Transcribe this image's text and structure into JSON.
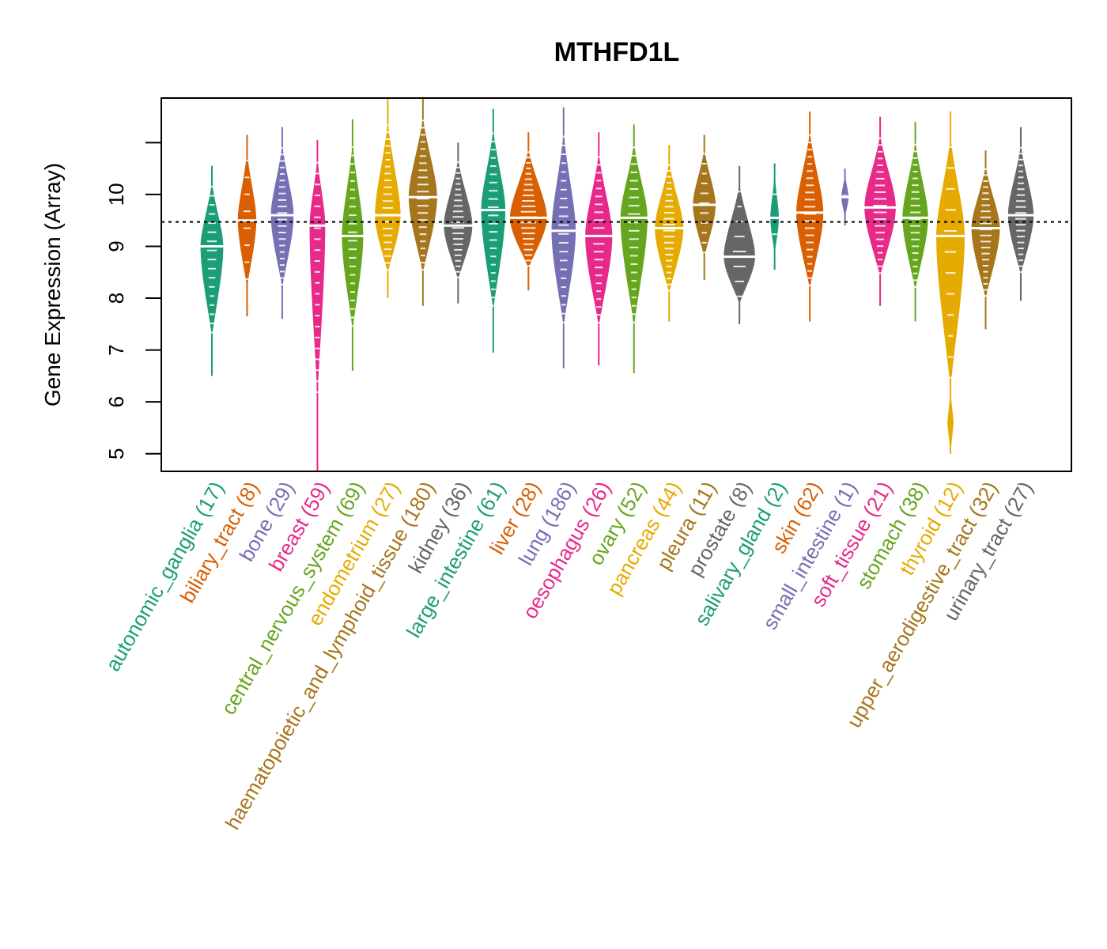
{
  "chart_data": {
    "type": "violin",
    "title": "MTHFD1L",
    "xlabel": "",
    "ylabel": "Gene Expression (Array)",
    "ylim": [
      4.66,
      11.86
    ],
    "yticks": [
      5,
      6,
      7,
      8,
      9,
      10,
      11
    ],
    "ytick_labels": [
      "5",
      "6",
      "7",
      "8",
      "9",
      "10",
      ""
    ],
    "reference_line": {
      "value": 9.47,
      "style": "dotted"
    },
    "grid": false,
    "legend": "none",
    "categories": [
      {
        "name": "autonomic_ganglia",
        "n": 17,
        "label": "autonomic_ganglia (17)",
        "color": "#1b9e77",
        "median": 9.0,
        "min": 6.5,
        "max": 10.55,
        "width": 0.8
      },
      {
        "name": "biliary_tract",
        "n": 8,
        "label": "biliary_tract (8)",
        "color": "#d95f02",
        "median": 9.5,
        "min": 7.65,
        "max": 11.15,
        "width": 0.65
      },
      {
        "name": "bone",
        "n": 29,
        "label": "bone (29)",
        "color": "#7570b3",
        "median": 9.6,
        "min": 7.6,
        "max": 11.3,
        "width": 0.8
      },
      {
        "name": "breast",
        "n": 59,
        "label": "breast (59)",
        "color": "#e7298a",
        "median": 9.4,
        "min": 4.66,
        "max": 11.05,
        "width": 0.55
      },
      {
        "name": "central_nervous_system",
        "n": 69,
        "label": "central_nervous_system (69)",
        "color": "#66a61e",
        "median": 9.2,
        "min": 6.6,
        "max": 11.45,
        "width": 0.75
      },
      {
        "name": "endometrium",
        "n": 27,
        "label": "endometrium (27)",
        "color": "#e6ab02",
        "median": 9.6,
        "min": 8.0,
        "max": 11.85,
        "width": 0.9
      },
      {
        "name": "haematopoietic_and_lymphoid_tissue",
        "n": 180,
        "label": "haematopoietic_and_lymphoid_tissue (180)",
        "color": "#a6761d",
        "median": 9.95,
        "min": 7.85,
        "max": 11.88,
        "width": 1.0
      },
      {
        "name": "kidney",
        "n": 36,
        "label": "kidney (36)",
        "color": "#666666",
        "median": 9.4,
        "min": 7.9,
        "max": 11.0,
        "width": 1.0
      },
      {
        "name": "large_intestine",
        "n": 61,
        "label": "large_intestine (61)",
        "color": "#1b9e77",
        "median": 9.7,
        "min": 6.95,
        "max": 11.65,
        "width": 0.85
      },
      {
        "name": "liver",
        "n": 28,
        "label": "liver (28)",
        "color": "#d95f02",
        "median": 9.55,
        "min": 8.15,
        "max": 11.2,
        "width": 1.3
      },
      {
        "name": "lung",
        "n": 186,
        "label": "lung (186)",
        "color": "#7570b3",
        "median": 9.3,
        "min": 6.65,
        "max": 11.68,
        "width": 0.85
      },
      {
        "name": "oesophagus",
        "n": 26,
        "label": "oesophagus (26)",
        "color": "#e7298a",
        "median": 9.2,
        "min": 6.7,
        "max": 11.2,
        "width": 0.95
      },
      {
        "name": "ovary",
        "n": 52,
        "label": "ovary (52)",
        "color": "#66a61e",
        "median": 9.55,
        "min": 6.55,
        "max": 11.35,
        "width": 0.95
      },
      {
        "name": "pancreas",
        "n": 44,
        "label": "pancreas (44)",
        "color": "#e6ab02",
        "median": 9.35,
        "min": 7.55,
        "max": 10.95,
        "width": 1.0
      },
      {
        "name": "pleura",
        "n": 11,
        "label": "pleura (11)",
        "color": "#a6761d",
        "median": 9.8,
        "min": 8.35,
        "max": 11.15,
        "width": 0.8
      },
      {
        "name": "prostate",
        "n": 8,
        "label": "prostate (8)",
        "color": "#666666",
        "median": 8.8,
        "min": 7.5,
        "max": 10.55,
        "width": 1.1
      },
      {
        "name": "salivary_gland",
        "n": 2,
        "label": "salivary_gland (2)",
        "color": "#1b9e77",
        "median": 9.55,
        "min": 8.55,
        "max": 10.6,
        "width": 0.3
      },
      {
        "name": "skin",
        "n": 62,
        "label": "skin (62)",
        "color": "#d95f02",
        "median": 9.65,
        "min": 7.55,
        "max": 11.6,
        "width": 0.95
      },
      {
        "name": "small_intestine",
        "n": 1,
        "label": "small_intestine (1)",
        "color": "#7570b3",
        "median": 9.95,
        "min": 9.4,
        "max": 10.5,
        "width": 0.25
      },
      {
        "name": "soft_tissue",
        "n": 21,
        "label": "soft_tissue (21)",
        "color": "#e7298a",
        "median": 9.75,
        "min": 7.85,
        "max": 11.5,
        "width": 1.1
      },
      {
        "name": "stomach",
        "n": 38,
        "label": "stomach (38)",
        "color": "#66a61e",
        "median": 9.55,
        "min": 7.55,
        "max": 11.4,
        "width": 0.9
      },
      {
        "name": "thyroid",
        "n": 12,
        "label": "thyroid (12)",
        "color": "#e6ab02",
        "median": 9.2,
        "min": 5.0,
        "max": 11.6,
        "width": 1.0
      },
      {
        "name": "upper_aerodigestive_tract",
        "n": 32,
        "label": "upper_aerodigestive_tract (32)",
        "color": "#a6761d",
        "median": 9.35,
        "min": 7.4,
        "max": 10.85,
        "width": 1.0
      },
      {
        "name": "urinary_tract",
        "n": 27,
        "label": "urinary_tract (27)",
        "color": "#666666",
        "median": 9.6,
        "min": 7.95,
        "max": 11.3,
        "width": 0.9
      }
    ]
  }
}
